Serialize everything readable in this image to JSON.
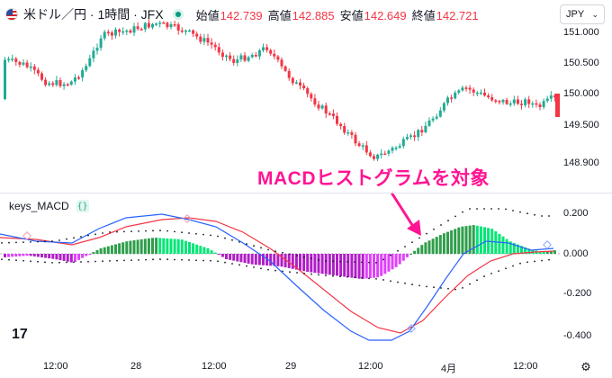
{
  "header": {
    "symbol": "米ドル／円 · 1時間 · JFX",
    "open_label": "始値",
    "open_value": "142.739",
    "high_label": "高値",
    "high_value": "142.885",
    "low_label": "安値",
    "low_value": "142.649",
    "close_label": "終値",
    "close_value": "142.721",
    "currency": "JPY",
    "chevron_icon": "chevron-down-icon"
  },
  "price_axis": [
    "151.000",
    "150.500",
    "150.000",
    "149.500",
    "148.900"
  ],
  "indicator": {
    "name": "keys_MACD",
    "source_code_icon": "curly-braces-icon",
    "axis": [
      "0.200",
      "0.000",
      "-0.200",
      "-0.400"
    ]
  },
  "annotation": "MACDヒストグラムを対象",
  "time_axis": [
    "12:00",
    "28",
    "12:00",
    "29",
    "12:00",
    "4月",
    "12:00"
  ],
  "logo_text": "17",
  "colors": {
    "up": "#22ab94",
    "down": "#f23645",
    "macd_line": "#2962ff",
    "signal_line": "#f23645",
    "hist_up": "#2e9e4a",
    "hist_up_light": "#00e676",
    "hist_down": "#b01ec7",
    "hist_down_light": "#e040fb",
    "annotation": "#ff1493"
  }
}
